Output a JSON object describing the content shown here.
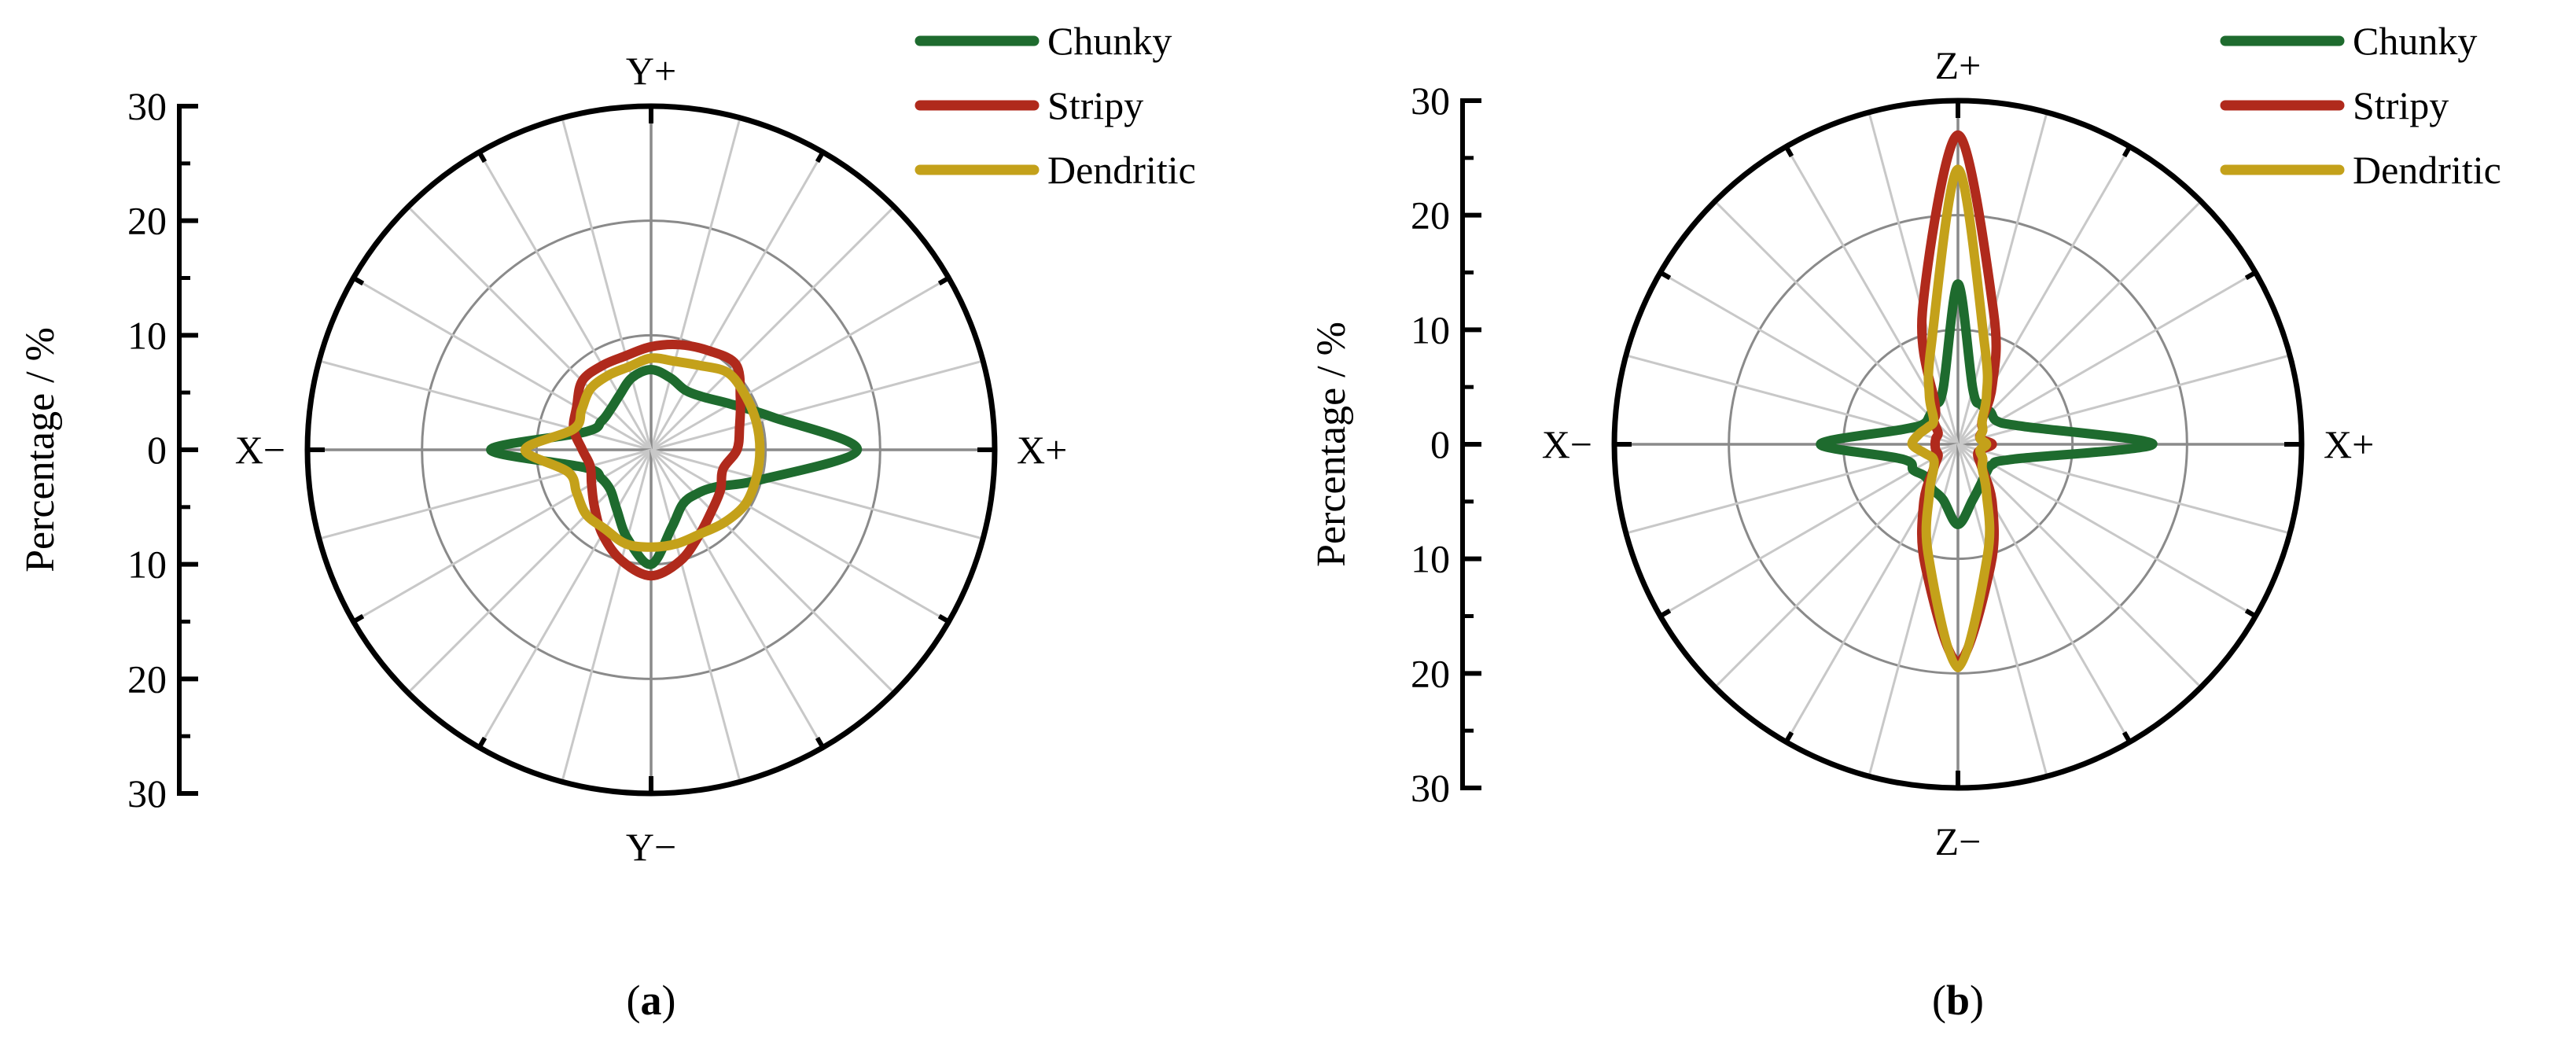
{
  "chart_data": [
    {
      "panel": "a",
      "type": "polar",
      "caption_open": "(",
      "caption_letter": "a",
      "caption_close": ")",
      "ylabel": "Percentage / %",
      "rlim": [
        0,
        30
      ],
      "tick_labels": [
        "30",
        "20",
        "10",
        "0",
        "10",
        "20",
        "30"
      ],
      "direction_labels": {
        "top": "Y+",
        "bottom": "Y−",
        "left": "X−",
        "right": "X+"
      },
      "angles_deg": [
        0,
        15,
        30,
        45,
        60,
        75,
        90,
        105,
        120,
        135,
        150,
        165,
        180,
        195,
        210,
        225,
        240,
        255,
        270,
        285,
        300,
        315,
        330,
        345
      ],
      "grid": true,
      "legend_position": "top-right",
      "series": [
        {
          "name": "Chunky",
          "color": "#1e6b2e",
          "r": [
            18,
            11,
            8,
            6.5,
            6,
            6.5,
            7,
            6.5,
            5.5,
            5,
            5,
            6,
            14,
            6,
            5,
            5,
            6,
            8,
            10,
            7,
            5.5,
            5.5,
            6.5,
            10
          ]
        },
        {
          "name": "Stripy",
          "color": "#b02a1c",
          "r": [
            7.5,
            8,
            9,
            10.5,
            10,
            9.5,
            9,
            8.5,
            8.5,
            8.5,
            7.5,
            7,
            6,
            5.5,
            6,
            7,
            8.5,
            10,
            11,
            10,
            8.5,
            7.5,
            7,
            6.5
          ]
        },
        {
          "name": "Dendritic",
          "color": "#c4a11a",
          "r": [
            9.5,
            9.5,
            9.5,
            9.5,
            8.5,
            8,
            8,
            7.5,
            7.5,
            7.5,
            7,
            7,
            11,
            7.5,
            7.5,
            8,
            8,
            8.5,
            8.5,
            8.5,
            8.5,
            9,
            9.5,
            9.5
          ]
        }
      ]
    },
    {
      "panel": "b",
      "type": "polar",
      "caption_open": "(",
      "caption_letter": "b",
      "caption_close": ")",
      "ylabel": "Percentage / %",
      "rlim": [
        0,
        30
      ],
      "tick_labels": [
        "30",
        "20",
        "10",
        "0",
        "10",
        "20",
        "30"
      ],
      "direction_labels": {
        "top": "Z+",
        "bottom": "Z−",
        "left": "X−",
        "right": "X+"
      },
      "angles_deg": [
        0,
        15,
        30,
        45,
        60,
        75,
        90,
        105,
        120,
        135,
        150,
        165,
        180,
        195,
        210,
        225,
        240,
        255,
        270,
        285,
        300,
        315,
        330,
        345
      ],
      "grid": true,
      "legend_position": "top-right",
      "series": [
        {
          "name": "Chunky",
          "color": "#1e6b2e",
          "r": [
            17,
            6,
            4,
            4,
            4,
            5,
            14,
            5,
            4,
            3.5,
            3.5,
            5,
            12,
            5,
            4.5,
            4,
            4.5,
            5,
            7,
            5,
            4,
            3.5,
            3.5,
            5
          ]
        },
        {
          "name": "Stripy",
          "color": "#b02a1c",
          "r": [
            3,
            2,
            2.5,
            3,
            6,
            12,
            27,
            12,
            4,
            3,
            2,
            2,
            2,
            2,
            2,
            3,
            6,
            11,
            19,
            11,
            6,
            3,
            2,
            2
          ]
        },
        {
          "name": "Dendritic",
          "color": "#c4a11a",
          "r": [
            2.5,
            2,
            2.5,
            3,
            5,
            9,
            24,
            9,
            5,
            3,
            3,
            3.5,
            4,
            3,
            2.5,
            3,
            5,
            10,
            19.5,
            10,
            5,
            3,
            2.5,
            2
          ]
        }
      ]
    }
  ]
}
